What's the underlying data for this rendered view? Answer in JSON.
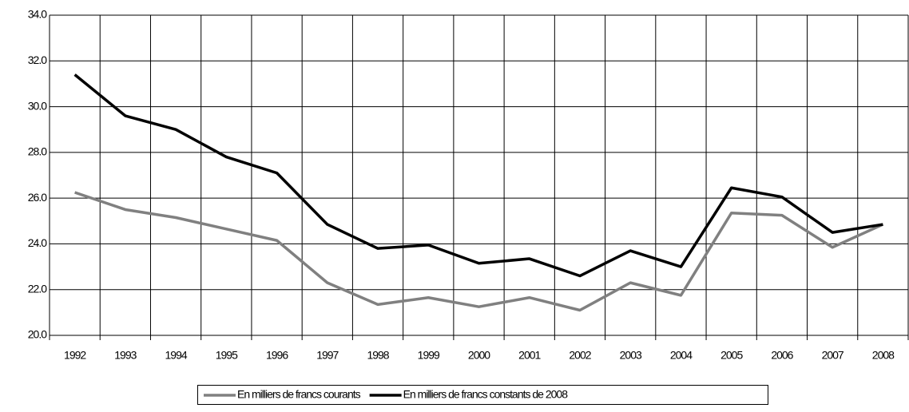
{
  "chart_data": {
    "type": "line",
    "categories": [
      "1992",
      "1993",
      "1994",
      "1995",
      "1996",
      "1997",
      "1998",
      "1999",
      "2000",
      "2001",
      "2002",
      "2003",
      "2004",
      "2005",
      "2006",
      "2007",
      "2008"
    ],
    "series": [
      {
        "name": "En milliers de francs courants",
        "color": "#808080",
        "values": [
          26.25,
          25.5,
          25.15,
          24.65,
          24.15,
          22.3,
          21.35,
          21.65,
          21.25,
          21.65,
          21.1,
          22.3,
          21.75,
          25.35,
          25.25,
          23.85,
          24.85
        ]
      },
      {
        "name": "En milliers de francs constants de 2008",
        "color": "#000000",
        "values": [
          31.4,
          29.6,
          29.0,
          27.8,
          27.1,
          24.85,
          23.8,
          23.95,
          23.15,
          23.35,
          22.6,
          23.7,
          23.0,
          26.45,
          26.05,
          24.5,
          24.85
        ]
      }
    ],
    "ylim": [
      20,
      34
    ],
    "yticks": [
      {
        "value": 20,
        "label": "20.0"
      },
      {
        "value": 22,
        "label": "22.0"
      },
      {
        "value": 24,
        "label": "24.0"
      },
      {
        "value": 26,
        "label": "26.0"
      },
      {
        "value": 28,
        "label": "28.0"
      },
      {
        "value": 30,
        "label": "30.0"
      },
      {
        "value": 32,
        "label": "32.0"
      },
      {
        "value": 34,
        "label": "34.0"
      }
    ],
    "grid": true,
    "legend": "bottom"
  }
}
